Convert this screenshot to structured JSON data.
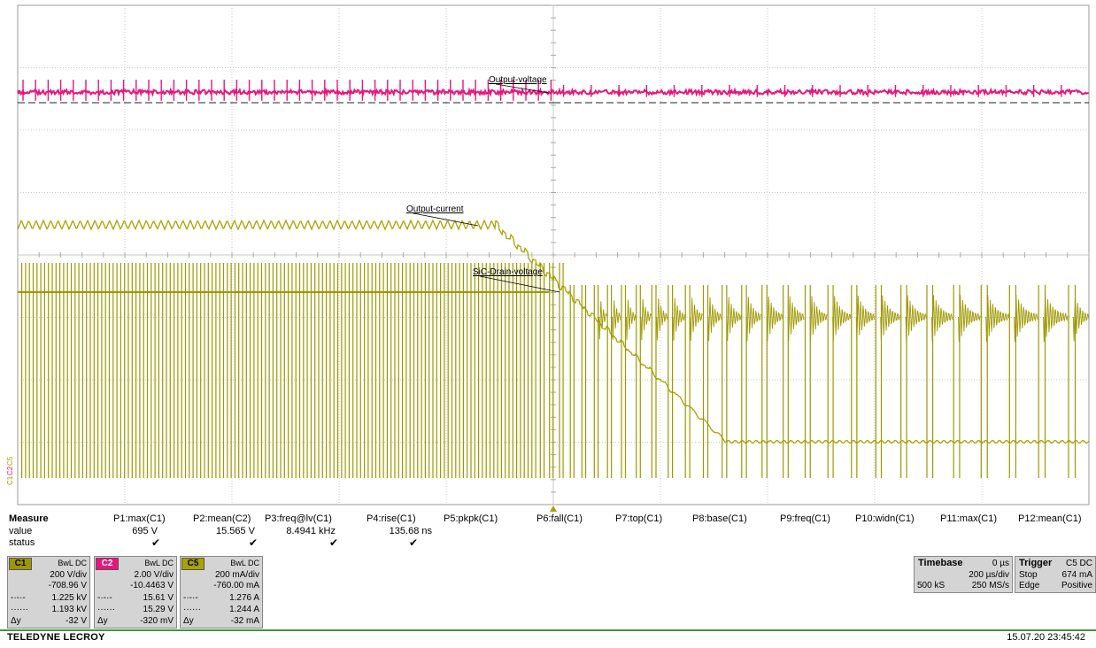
{
  "colors": {
    "c1": "#9e9800",
    "c2": "#e8157a",
    "c5": "#a8a300",
    "grid": "#c8c8c8"
  },
  "chart_data": {
    "type": "line",
    "title": "",
    "grid": true,
    "traces": [
      {
        "name": "Output-voltage",
        "channel": "C2",
        "description": "switching ripple, constant level"
      },
      {
        "name": "Output-current",
        "channel": "C5",
        "description": "ripple then ramps down at t=0"
      },
      {
        "name": "SiC-Drain-voltage",
        "channel": "C1",
        "description": "switching pulses, switching frequency drops after t=0"
      }
    ],
    "annotations": [
      "Output-voltage",
      "Output-current",
      "SiC-Drain-voltage"
    ]
  },
  "measure": {
    "header": "Measure",
    "row_value": "value",
    "row_status": "status",
    "columns": [
      {
        "label": "P1:max(C1)",
        "value": "695 V",
        "status": true
      },
      {
        "label": "P2:mean(C2)",
        "value": "15.565 V",
        "status": true
      },
      {
        "label": "P3:freq@lv(C1)",
        "value": "8.4941 kHz",
        "status": true
      },
      {
        "label": "P4:rise(C1)",
        "value": "135.68 ns",
        "status": true
      },
      {
        "label": "P5:pkpk(C1)",
        "value": "",
        "status": false
      },
      {
        "label": "P6:fall(C1)",
        "value": "",
        "status": false
      },
      {
        "label": "P7:top(C1)",
        "value": "",
        "status": false
      },
      {
        "label": "P8:base(C1)",
        "value": "",
        "status": false
      },
      {
        "label": "P9:freq(C1)",
        "value": "",
        "status": false
      },
      {
        "label": "P10:widn(C1)",
        "value": "",
        "status": false
      },
      {
        "label": "P11:max(C1)",
        "value": "",
        "status": false
      },
      {
        "label": "P12:mean(C1)",
        "value": "",
        "status": false
      }
    ],
    "check": "✔"
  },
  "channels": [
    {
      "tag": "C1",
      "coupling": "BwL DC",
      "vdiv": "200 V/div",
      "offset": "-708.96 V",
      "cur1": "1.225 kV",
      "cur2": "1.193 kV",
      "dy_label": "Δy",
      "dy": "-32 V"
    },
    {
      "tag": "C2",
      "coupling": "BwL DC",
      "vdiv": "2.00 V/div",
      "offset": "-10.4463 V",
      "cur1": "15.61 V",
      "cur2": "15.29 V",
      "dy_label": "Δy",
      "dy": "-320 mV"
    },
    {
      "tag": "C5",
      "coupling": "BwL DC",
      "vdiv": "200 mA/div",
      "offset": "-760.00 mA",
      "cur1": "1.276 A",
      "cur2": "1.244 A",
      "dy_label": "Δy",
      "dy": "-32 mA"
    }
  ],
  "timebase": {
    "label": "Timebase",
    "delay": "0 µs",
    "tdiv": "200 µs/div",
    "samples": "500 kS",
    "rate": "250 MS/s"
  },
  "trigger": {
    "label": "Trigger",
    "source": "C5 DC",
    "level": "674 mA",
    "mode": "Stop",
    "type": "Edge",
    "slope": "Positive"
  },
  "footer": {
    "brand": "TELEDYNE LECROY",
    "timestamp": "15.07.20 23:45:42"
  },
  "left_markers": [
    "C1",
    "C2",
    "C5"
  ]
}
